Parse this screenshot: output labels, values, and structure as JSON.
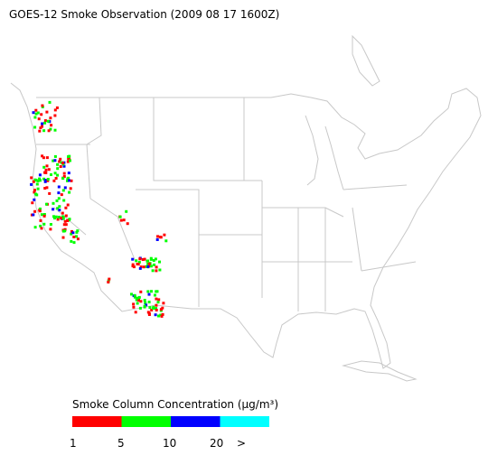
{
  "title": "GOES-12 Smoke Observation (2009 08 17  1600Z)",
  "legend": {
    "title": "Smoke Column Concentration (μg/m³)",
    "colors": [
      "#ff0000",
      "#00ff00",
      "#0000ff",
      "#00ffff"
    ],
    "labels": [
      "1",
      "5",
      "10",
      "20",
      ">"
    ]
  }
}
